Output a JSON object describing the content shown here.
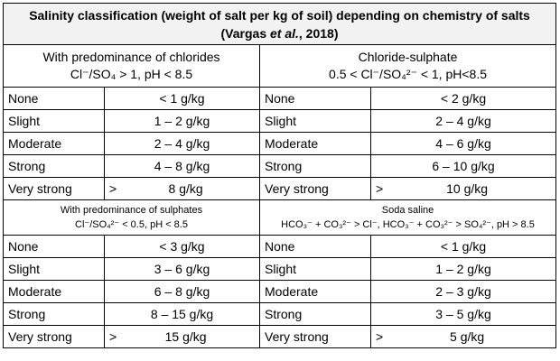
{
  "title": {
    "parts": [
      "Salinity classification (weight of salt per kg of soil) depending on chemistry of salts (Vargas ",
      "et al.",
      ", 2018)"
    ]
  },
  "sections": [
    {
      "headers": [
        [
          "With predominance of chlorides",
          "Cl⁻/SO₄ > 1, pH < 8.5"
        ],
        [
          "Chloride-sulphate",
          "0.5 < Cl⁻/SO₄²⁻ < 1, pH<8.5"
        ]
      ],
      "rows": [
        [
          "None",
          "< 1 g/kg",
          "None",
          "< 2 g/kg"
        ],
        [
          "Slight",
          "1 – 2 g/kg",
          "Slight",
          "2 – 4 g/kg"
        ],
        [
          "Moderate",
          "2 – 4 g/kg",
          "Moderate",
          "4 – 6 g/kg"
        ],
        [
          "Strong",
          "4 – 8 g/kg",
          "Strong",
          "6 – 10 g/kg"
        ],
        [
          "Very strong",
          ">",
          "8 g/kg",
          "Very strong",
          ">",
          "10 g/kg"
        ]
      ]
    },
    {
      "headers": [
        [
          "With predominance of sulphates",
          "Cl⁻/SO₄²⁻ < 0.5, pH < 8.5"
        ],
        [
          "Soda saline",
          "HCO₃⁻ + CO₃²⁻ > Cl⁻, HCO₃⁻ + CO₃²⁻ > SO₄²⁻, pH > 8.5"
        ]
      ],
      "rows": [
        [
          "None",
          "< 3 g/kg",
          "None",
          "< 1 g/kg"
        ],
        [
          "Slight",
          "3 – 6 g/kg",
          "Slight",
          "1 – 2 g/kg"
        ],
        [
          "Moderate",
          "6 – 8 g/kg",
          "Moderate",
          "2 – 3 g/kg"
        ],
        [
          "Strong",
          "8 – 15 g/kg",
          "Strong",
          "3 – 5 g/kg"
        ],
        [
          "Very strong",
          ">",
          "15 g/kg",
          "Very strong",
          ">",
          "5 g/kg"
        ]
      ]
    }
  ]
}
